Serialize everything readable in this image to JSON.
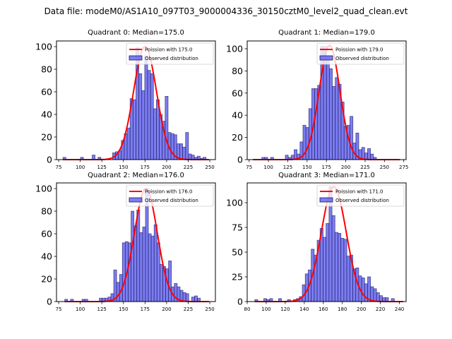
{
  "chart_data": {
    "suptitle": "Data file: modeM0/AS1A10_097T03_9000004336_30150cztM0_level2_quad_clean.evt",
    "type": "bar",
    "colors": {
      "bar_fill": "#6666ee",
      "bar_edge": "#1a1a60",
      "poisson_line": "#ff0000"
    },
    "panels": [
      {
        "title": "Quadrant 0: Median=175.0",
        "xlim": [
          72.5,
          256.5
        ],
        "ylim": [
          0,
          105
        ],
        "xticks": [
          75,
          100,
          125,
          150,
          175,
          200,
          225,
          250
        ],
        "yticks": [
          0,
          20,
          40,
          60,
          80,
          100
        ],
        "legend": [
          "Poission with 175.0",
          "Observed distribution"
        ],
        "legend_position": "top-right",
        "poisson_mean": 175.0,
        "poisson_peak": 100,
        "bins": {
          "start": 80,
          "width": 3.38
        },
        "counts": [
          2,
          0,
          0,
          0,
          0,
          0,
          2,
          0,
          0,
          0,
          4,
          0,
          2,
          0,
          0,
          0,
          0,
          6,
          7,
          8,
          17,
          23,
          28,
          54,
          53,
          99,
          76,
          61,
          92,
          79,
          76,
          45,
          53,
          40,
          34,
          56,
          24,
          23,
          22,
          14,
          14,
          11,
          24,
          5,
          4,
          2,
          3,
          1,
          2,
          0
        ]
      },
      {
        "title": "Quadrant 1: Median=179.0",
        "xlim": [
          72.5,
          278
        ],
        "ylim": [
          0,
          107
        ],
        "xticks": [
          75,
          100,
          125,
          150,
          175,
          200,
          225,
          250,
          275
        ],
        "yticks": [
          0,
          20,
          40,
          60,
          80,
          100
        ],
        "legend": [
          "Poission with 179.0",
          "Observed distribution"
        ],
        "legend_position": "top-right",
        "poisson_mean": 179.0,
        "poisson_peak": 103,
        "bins": {
          "start": 80,
          "width": 3.8
        },
        "counts": [
          0,
          0,
          0,
          2,
          2,
          0,
          2,
          0,
          0,
          0,
          0,
          4,
          2,
          4,
          9,
          5,
          16,
          31,
          29,
          46,
          64,
          64,
          67,
          102,
          102,
          92,
          82,
          66,
          74,
          68,
          52,
          30,
          31,
          39,
          15,
          24,
          9,
          11,
          6,
          10,
          5,
          2,
          0,
          0,
          0,
          0,
          0,
          0,
          0,
          0
        ]
      },
      {
        "title": "Quadrant 2: Median=176.0",
        "xlim": [
          72.5,
          256.5
        ],
        "ylim": [
          0,
          105
        ],
        "xticks": [
          75,
          100,
          125,
          150,
          175,
          200,
          225,
          250
        ],
        "yticks": [
          0,
          20,
          40,
          60,
          80,
          100
        ],
        "legend": [
          "Poission with 176.0",
          "Observed distribution"
        ],
        "legend_position": "top-right",
        "poisson_mean": 176.0,
        "poisson_peak": 100,
        "bins": {
          "start": 82,
          "width": 3.34
        },
        "counts": [
          2,
          0,
          2,
          0,
          0,
          0,
          2,
          2,
          0,
          0,
          0,
          0,
          3,
          3,
          3,
          4,
          7,
          28,
          17,
          24,
          52,
          53,
          52,
          80,
          67,
          81,
          61,
          66,
          100,
          60,
          58,
          68,
          52,
          33,
          31,
          29,
          36,
          13,
          16,
          13,
          10,
          8,
          7,
          0,
          4,
          5,
          3,
          0,
          0,
          0
        ]
      },
      {
        "title": "Quadrant 3: Median=171.0",
        "xlim": [
          80,
          247
        ],
        "ylim": [
          0,
          120
        ],
        "xticks": [
          80,
          100,
          120,
          140,
          160,
          180,
          200,
          220,
          240
        ],
        "yticks": [
          0,
          25,
          50,
          75,
          100
        ],
        "legend": [
          "Poission with 171.0",
          "Observed distribution"
        ],
        "legend_position": "top-right",
        "poisson_mean": 171.0,
        "poisson_peak": 116,
        "bins": {
          "start": 88,
          "width": 3.12
        },
        "counts": [
          2,
          0,
          0,
          3,
          2,
          3,
          0,
          0,
          3,
          0,
          0,
          2,
          0,
          2,
          3,
          5,
          17,
          28,
          32,
          53,
          47,
          62,
          74,
          65,
          79,
          116,
          87,
          70,
          69,
          64,
          63,
          46,
          47,
          33,
          34,
          26,
          24,
          18,
          25,
          15,
          13,
          9,
          6,
          4,
          4,
          0,
          3,
          0,
          0,
          0
        ]
      }
    ]
  }
}
